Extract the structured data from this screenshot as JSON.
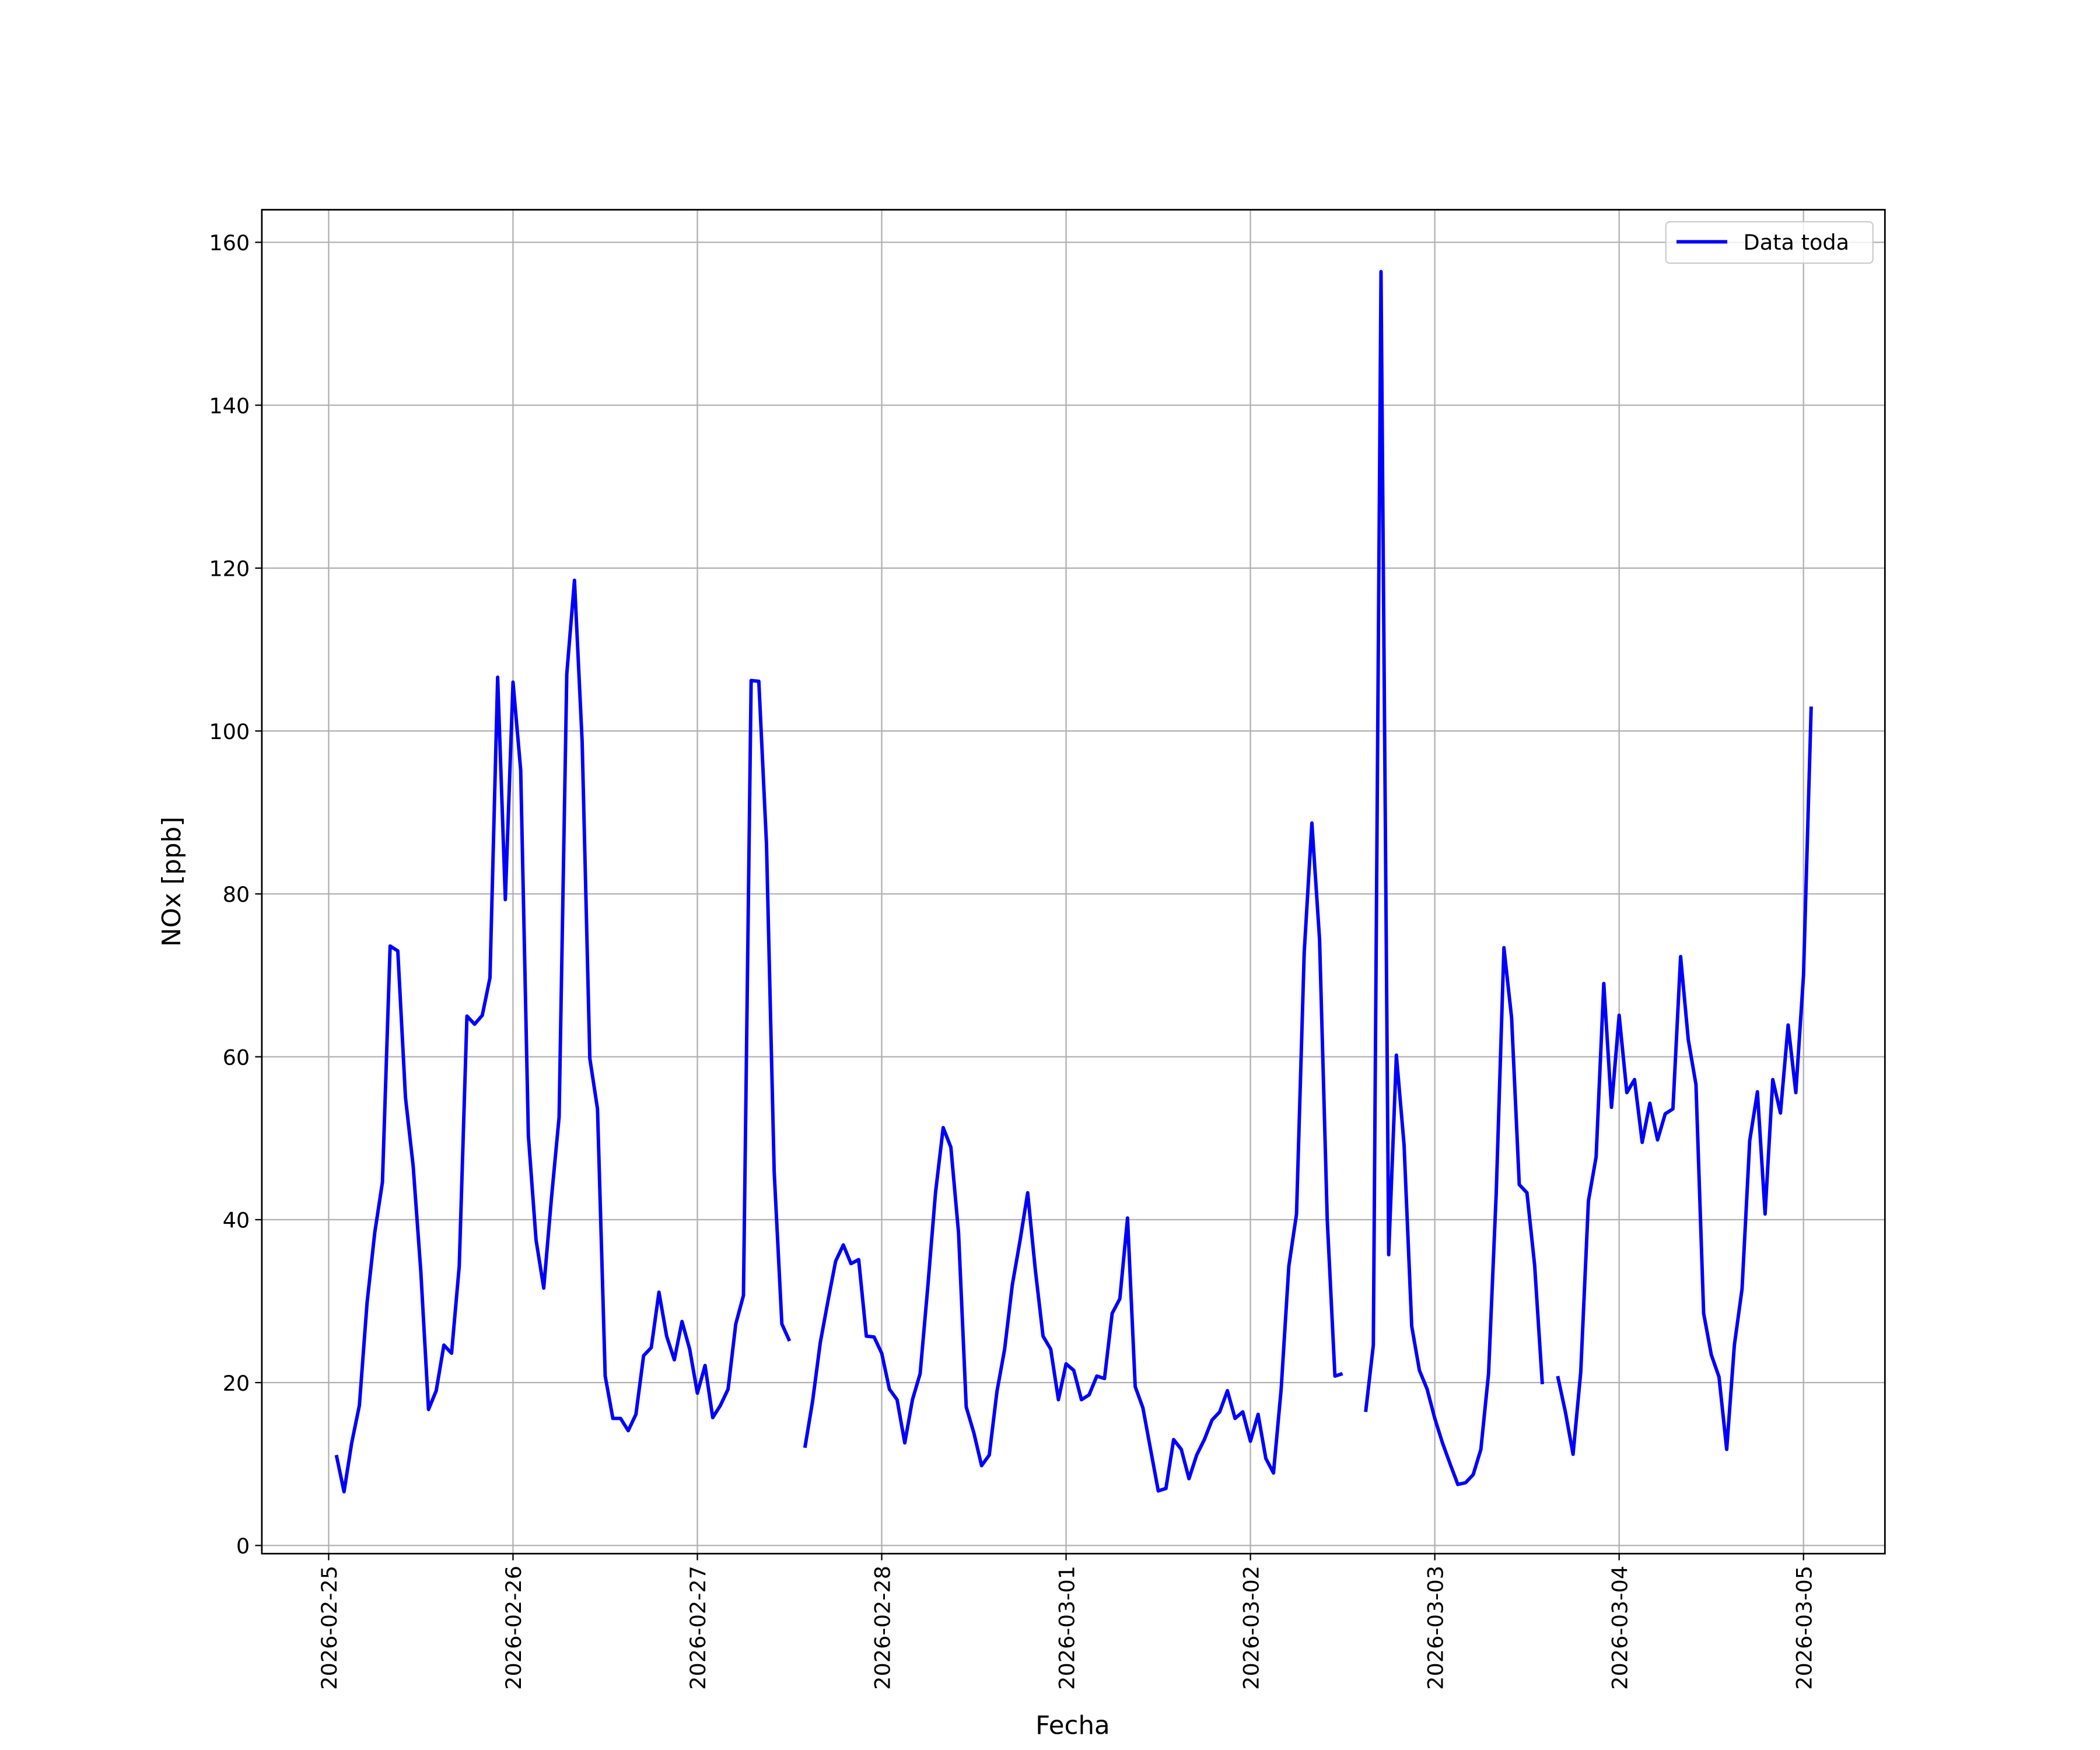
{
  "chart_data": {
    "type": "line",
    "xlabel": "Fecha",
    "ylabel": "NOx [ppb]",
    "xlim": [
      "2026-02-24T15:18",
      "2026-03-05T10:36"
    ],
    "ylim": [
      -1,
      164
    ],
    "xticks": [
      "2026-02-25",
      "2026-02-26",
      "2026-02-27",
      "2026-02-28",
      "2026-03-01",
      "2026-03-02",
      "2026-03-03",
      "2026-03-04",
      "2026-03-05"
    ],
    "yticks": [
      0,
      20,
      40,
      60,
      80,
      100,
      120,
      140,
      160
    ],
    "grid": true,
    "legend": "upper right",
    "x": [
      "2026-02-25T01:00",
      "2026-02-25T02:00",
      "2026-02-25T03:00",
      "2026-02-25T04:00",
      "2026-02-25T05:00",
      "2026-02-25T06:00",
      "2026-02-25T07:00",
      "2026-02-25T08:00",
      "2026-02-25T09:00",
      "2026-02-25T10:00",
      "2026-02-25T11:00",
      "2026-02-25T12:00",
      "2026-02-25T13:00",
      "2026-02-25T14:00",
      "2026-02-25T15:00",
      "2026-02-25T16:00",
      "2026-02-25T17:00",
      "2026-02-25T18:00",
      "2026-02-25T19:00",
      "2026-02-25T20:00",
      "2026-02-25T21:00",
      "2026-02-25T22:00",
      "2026-02-25T23:00",
      "2026-02-26T00:00",
      "2026-02-26T01:00",
      "2026-02-26T02:00",
      "2026-02-26T03:00",
      "2026-02-26T04:00",
      "2026-02-26T05:00",
      "2026-02-26T06:00",
      "2026-02-26T07:00",
      "2026-02-26T08:00",
      "2026-02-26T09:00",
      "2026-02-26T10:00",
      "2026-02-26T11:00",
      "2026-02-26T12:00",
      "2026-02-26T13:00",
      "2026-02-26T14:00",
      "2026-02-26T15:00",
      "2026-02-26T16:00",
      "2026-02-26T17:00",
      "2026-02-26T18:00",
      "2026-02-26T19:00",
      "2026-02-26T20:00",
      "2026-02-26T21:00",
      "2026-02-26T22:00",
      "2026-02-26T23:00",
      "2026-02-27T00:00",
      "2026-02-27T01:00",
      "2026-02-27T02:00",
      "2026-02-27T03:00",
      "2026-02-27T04:00",
      "2026-02-27T05:00",
      "2026-02-27T06:00",
      "2026-02-27T07:00",
      "2026-02-27T08:00",
      "2026-02-27T09:00",
      "2026-02-27T10:00",
      "2026-02-27T11:00",
      "2026-02-27T12:00",
      "2026-02-27T13:00",
      "2026-02-27T14:00",
      "2026-02-27T15:00",
      "2026-02-27T16:00",
      "2026-02-27T17:00",
      "2026-02-27T18:00",
      "2026-02-27T19:00",
      "2026-02-27T20:00",
      "2026-02-27T21:00",
      "2026-02-27T22:00",
      "2026-02-27T23:00",
      "2026-02-28T00:00",
      "2026-02-28T01:00",
      "2026-02-28T02:00",
      "2026-02-28T03:00",
      "2026-02-28T04:00",
      "2026-02-28T05:00",
      "2026-02-28T06:00",
      "2026-02-28T07:00",
      "2026-02-28T08:00",
      "2026-02-28T09:00",
      "2026-02-28T10:00",
      "2026-02-28T11:00",
      "2026-02-28T12:00",
      "2026-02-28T13:00",
      "2026-02-28T14:00",
      "2026-02-28T15:00",
      "2026-02-28T16:00",
      "2026-02-28T17:00",
      "2026-02-28T18:00",
      "2026-02-28T19:00",
      "2026-02-28T20:00",
      "2026-02-28T21:00",
      "2026-02-28T22:00",
      "2026-02-28T23:00",
      "2026-03-01T00:00",
      "2026-03-01T01:00",
      "2026-03-01T02:00",
      "2026-03-01T03:00",
      "2026-03-01T04:00",
      "2026-03-01T05:00",
      "2026-03-01T06:00",
      "2026-03-01T07:00",
      "2026-03-01T08:00",
      "2026-03-01T09:00",
      "2026-03-01T10:00",
      "2026-03-01T11:00",
      "2026-03-01T12:00",
      "2026-03-01T13:00",
      "2026-03-01T14:00",
      "2026-03-01T15:00",
      "2026-03-01T16:00",
      "2026-03-01T17:00",
      "2026-03-01T18:00",
      "2026-03-01T19:00",
      "2026-03-01T20:00",
      "2026-03-01T21:00",
      "2026-03-01T22:00",
      "2026-03-01T23:00",
      "2026-03-02T00:00",
      "2026-03-02T01:00",
      "2026-03-02T02:00",
      "2026-03-02T03:00",
      "2026-03-02T04:00",
      "2026-03-02T05:00",
      "2026-03-02T06:00",
      "2026-03-02T07:00",
      "2026-03-02T08:00",
      "2026-03-02T09:00",
      "2026-03-02T10:00",
      "2026-03-02T11:00",
      "2026-03-02T12:00",
      "2026-03-02T13:00",
      "2026-03-02T14:00",
      "2026-03-02T15:00",
      "2026-03-02T16:00",
      "2026-03-02T17:00",
      "2026-03-02T18:00",
      "2026-03-02T19:00",
      "2026-03-02T20:00",
      "2026-03-02T21:00",
      "2026-03-02T22:00",
      "2026-03-02T23:00",
      "2026-03-03T00:00",
      "2026-03-03T01:00",
      "2026-03-03T02:00",
      "2026-03-03T03:00",
      "2026-03-03T04:00",
      "2026-03-03T05:00",
      "2026-03-03T06:00",
      "2026-03-03T07:00",
      "2026-03-03T08:00",
      "2026-03-03T09:00",
      "2026-03-03T10:00",
      "2026-03-03T11:00",
      "2026-03-03T12:00",
      "2026-03-03T13:00",
      "2026-03-03T14:00",
      "2026-03-03T15:00",
      "2026-03-03T16:00",
      "2026-03-03T17:00",
      "2026-03-03T18:00",
      "2026-03-03T19:00",
      "2026-03-03T20:00",
      "2026-03-03T21:00",
      "2026-03-03T22:00",
      "2026-03-03T23:00",
      "2026-03-04T00:00",
      "2026-03-04T01:00",
      "2026-03-04T02:00",
      "2026-03-04T03:00",
      "2026-03-04T04:00",
      "2026-03-04T05:00",
      "2026-03-04T06:00",
      "2026-03-04T07:00",
      "2026-03-04T08:00",
      "2026-03-04T09:00",
      "2026-03-04T10:00",
      "2026-03-04T11:00",
      "2026-03-04T12:00",
      "2026-03-04T13:00",
      "2026-03-04T14:00",
      "2026-03-04T15:00",
      "2026-03-04T16:00",
      "2026-03-04T17:00",
      "2026-03-04T18:00",
      "2026-03-04T19:00",
      "2026-03-04T20:00",
      "2026-03-04T21:00",
      "2026-03-04T22:00",
      "2026-03-04T23:00",
      "2026-03-05T00:00",
      "2026-03-05T01:00"
    ],
    "series": [
      {
        "name": "Data toda",
        "color": "#0000ff",
        "values": [
          11.1,
          6.6,
          12.6,
          17.2,
          29.8,
          38.4,
          44.6,
          73.6,
          73,
          55,
          46.6,
          33.6,
          16.7,
          19,
          24.6,
          23.6,
          34.3,
          65,
          64,
          65.1,
          69.7,
          106.6,
          79.3,
          106,
          95.2,
          50.3,
          37.5,
          31.6,
          42.6,
          52.6,
          107,
          118.5,
          98.7,
          59.8,
          53.6,
          20.8,
          15.6,
          15.6,
          14.1,
          16.1,
          23.3,
          24.3,
          31.1,
          25.7,
          22.8,
          27.5,
          24.1,
          18.7,
          22.1,
          15.7,
          17.2,
          19.2,
          27.2,
          30.7,
          106.2,
          106.1,
          86.1,
          45.9,
          27.2,
          25.1,
          null,
          12,
          17.7,
          24.9,
          30,
          34.9,
          36.9,
          34.6,
          35.1,
          25.7,
          25.6,
          23.6,
          19.2,
          17.9,
          12.6,
          17.9,
          21.1,
          31.8,
          43.3,
          51.3,
          48.9,
          38.4,
          17,
          13.8,
          9.8,
          11.1,
          18.9,
          24.1,
          32,
          37.4,
          43.3,
          33.8,
          25.7,
          24.1,
          17.9,
          22.3,
          21.5,
          17.9,
          18.5,
          20.8,
          20.5,
          28.5,
          30.3,
          40.2,
          19.5,
          16.9,
          11.8,
          6.7,
          7,
          13,
          11.8,
          8.2,
          11.1,
          13,
          15.4,
          16.4,
          19,
          15.6,
          16.4,
          12.8,
          16.1,
          10.7,
          8.9,
          19.2,
          34.3,
          40.7,
          72.8,
          88.7,
          74.4,
          40,
          20.8,
          21.1,
          null,
          null,
          16.4,
          24.6,
          156.4,
          35.7,
          60.2,
          49.2,
          26.9,
          21.5,
          19.2,
          15.6,
          12.6,
          10,
          7.5,
          7.7,
          8.7,
          11.8,
          21.1,
          43.3,
          73.4,
          64.8,
          44.3,
          43.3,
          34.4,
          19.8,
          null,
          20.8,
          16.4,
          11.2,
          21.3,
          42.3,
          47.7,
          69,
          53.8,
          65.1,
          55.6,
          57.2,
          49.5,
          54.3,
          49.8,
          53,
          53.6,
          72.3,
          62.1,
          56.6,
          28.5,
          23.4,
          20.7,
          11.8,
          24.6,
          31.5,
          49.7,
          55.7,
          40.7,
          57.2,
          53.1,
          63.9,
          55.6,
          70,
          103
        ]
      }
    ]
  }
}
